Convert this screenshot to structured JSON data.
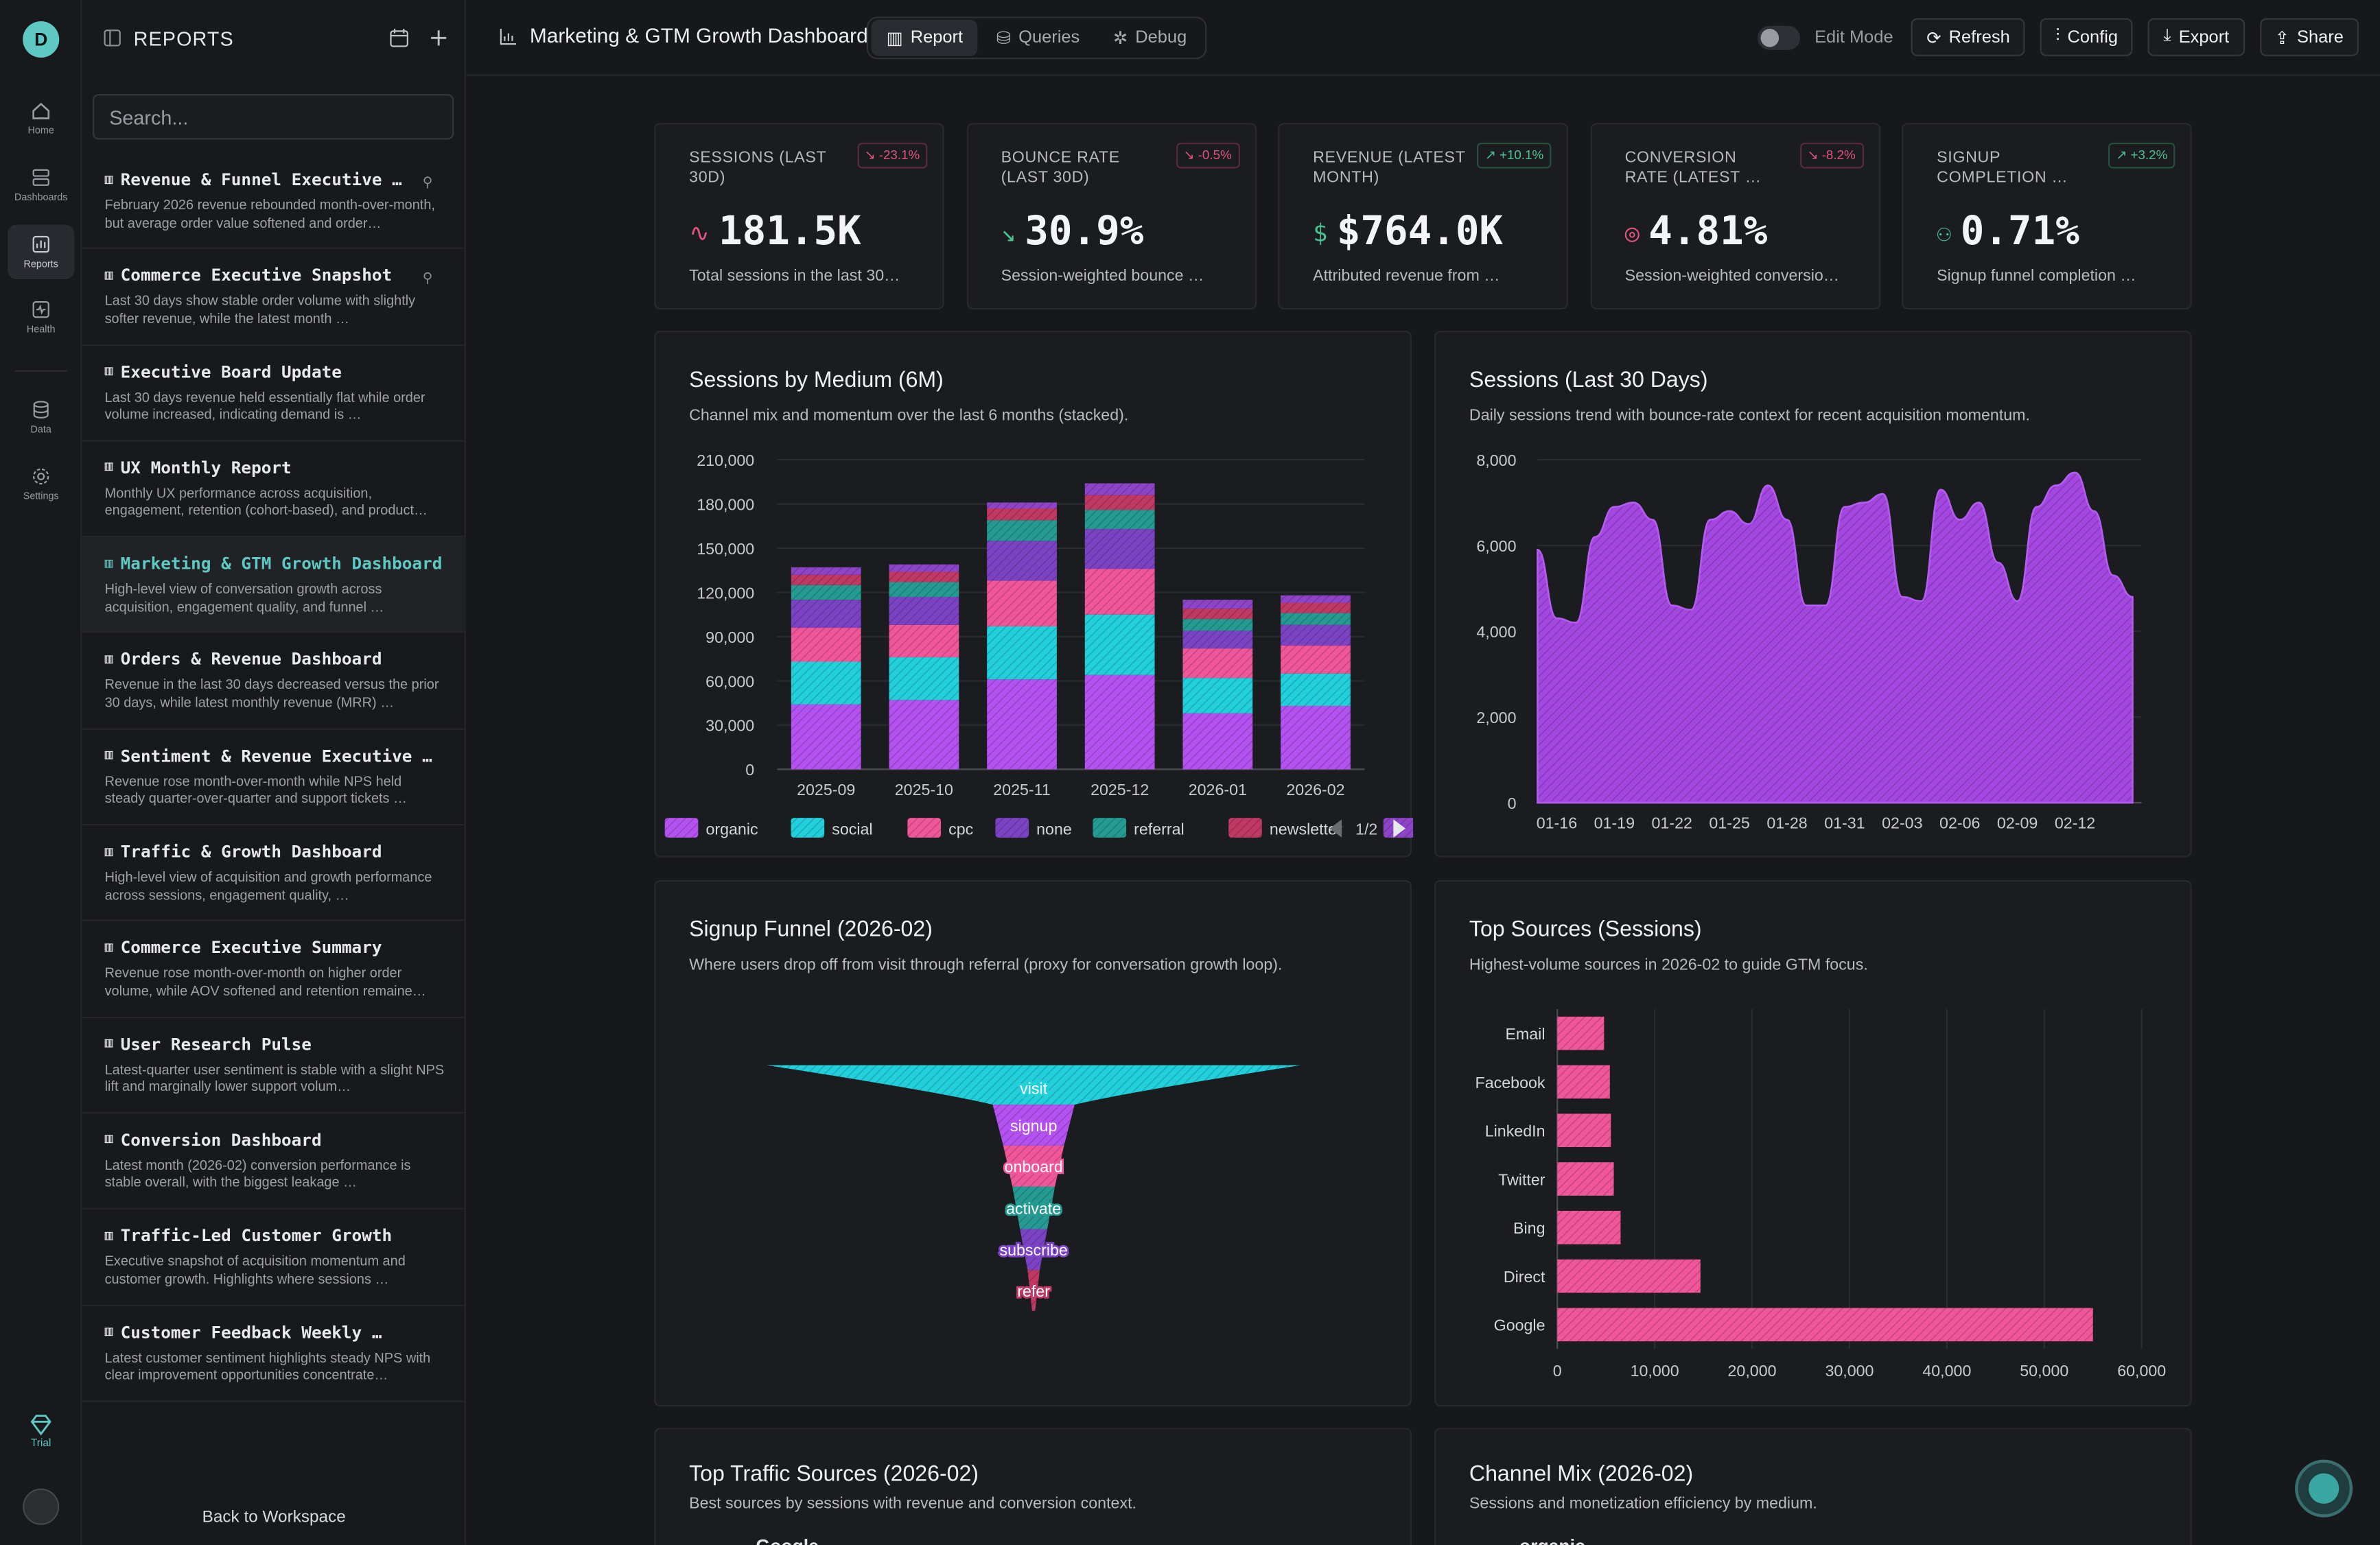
{
  "rail": {
    "items": [
      {
        "label": "Home",
        "icon": "home-icon"
      },
      {
        "label": "Dashboards",
        "icon": "dashboards-icon"
      },
      {
        "label": "Reports",
        "icon": "reports-icon"
      },
      {
        "label": "Health",
        "icon": "health-icon"
      },
      {
        "label": "Data",
        "icon": "data-icon"
      },
      {
        "label": "Settings",
        "icon": "settings-icon"
      }
    ],
    "trial": "Trial",
    "logo": "D"
  },
  "sidebar": {
    "title": "REPORTS",
    "search_placeholder": "Search...",
    "back": "Back to Workspace",
    "items": [
      {
        "title": "Revenue & Funnel Executive …",
        "desc": "February 2026 revenue rebounded month-over-month, but average order value softened and order…",
        "pinned": true
      },
      {
        "title": "Commerce Executive Snapshot",
        "desc": "Last 30 days show stable order volume with slightly softer revenue, while the latest month …",
        "pinned": true
      },
      {
        "title": "Executive Board Update",
        "desc": "Last 30 days revenue held essentially flat while order volume increased, indicating demand is …"
      },
      {
        "title": "UX Monthly Report",
        "desc": "Monthly UX performance across acquisition, engagement, retention (cohort-based), and product…"
      },
      {
        "title": "Marketing & GTM Growth Dashboard",
        "desc": "High-level view of conversation growth across acquisition, engagement quality, and funnel …",
        "active": true
      },
      {
        "title": "Orders & Revenue Dashboard",
        "desc": "Revenue in the last 30 days decreased versus the prior 30 days, while latest monthly revenue (MRR) …"
      },
      {
        "title": "Sentiment & Revenue Executive …",
        "desc": "Revenue rose month-over-month while NPS held steady quarter-over-quarter and support tickets …"
      },
      {
        "title": "Traffic & Growth Dashboard",
        "desc": "High-level view of acquisition and growth performance across sessions, engagement quality, …"
      },
      {
        "title": "Commerce Executive Summary",
        "desc": "Revenue rose month-over-month on higher order volume, while AOV softened and retention remaine…"
      },
      {
        "title": "User Research Pulse",
        "desc": "Latest-quarter user sentiment is stable with a slight NPS lift and marginally lower support volum…"
      },
      {
        "title": "Conversion Dashboard",
        "desc": "Latest month (2026-02) conversion performance is stable overall, with the biggest leakage …"
      },
      {
        "title": "Traffic-Led Customer Growth",
        "desc": "Executive snapshot of acquisition momentum and customer growth. Highlights where sessions …"
      },
      {
        "title": "Customer Feedback Weekly …",
        "desc": "Latest customer sentiment highlights steady NPS with clear improvement opportunities concentrate…"
      }
    ]
  },
  "header": {
    "title": "Marketing & GTM Growth Dashboard",
    "tabs": [
      "Report",
      "Queries",
      "Debug"
    ],
    "edit_mode": "Edit Mode",
    "buttons": [
      "Refresh",
      "Config",
      "Export",
      "Share"
    ]
  },
  "kpis": [
    {
      "label": "SESSIONS (LAST 30D)",
      "delta": "-23.1%",
      "dir": "down",
      "value": "181.5K",
      "sub": "Total sessions in the last 30…",
      "icon": "∿",
      "icolor": "#e0547e"
    },
    {
      "label": "BOUNCE RATE (LAST 30D)",
      "delta": "-0.5%",
      "dir": "down",
      "value": "30.9%",
      "sub": "Session-weighted bounce …",
      "icon": "↘",
      "icolor": "#4ac090"
    },
    {
      "label": "REVENUE (LATEST MONTH)",
      "delta": "+10.1%",
      "dir": "up",
      "value": "$764.0K",
      "sub": "Attributed revenue from …",
      "icon": "$",
      "icolor": "#4ac090"
    },
    {
      "label": "CONVERSION RATE (LATEST …",
      "delta": "-8.2%",
      "dir": "down",
      "value": "4.81%",
      "sub": "Session-weighted conversio…",
      "icon": "◎",
      "icolor": "#e0547e"
    },
    {
      "label": "SIGNUP COMPLETION …",
      "delta": "+3.2%",
      "dir": "up",
      "value": "0.71%",
      "sub": "Signup funnel completion …",
      "icon": "⚇",
      "icolor": "#4ac090"
    }
  ],
  "cards": {
    "medium": {
      "title": "Sessions by Medium (6M)",
      "subtitle": "Channel mix and momentum over the last 6 months (stacked).",
      "pager": "1/2"
    },
    "sessions30": {
      "title": "Sessions (Last 30 Days)",
      "subtitle": "Daily sessions trend with bounce-rate context for recent acquisition momentum."
    },
    "funnel": {
      "title": "Signup Funnel (2026-02)",
      "subtitle": "Where users drop off from visit through referral (proxy for conversation growth loop)."
    },
    "sources": {
      "title": "Top Sources (Sessions)",
      "subtitle": "Highest-volume sources in 2026-02 to guide GTM focus."
    },
    "traffic": {
      "title": "Top Traffic Sources (2026-02)",
      "subtitle": "Best sources by sessions with revenue and conversion context.",
      "first_row": "Google"
    },
    "channel": {
      "title": "Channel Mix (2026-02)",
      "subtitle": "Sessions and monetization efficiency by medium.",
      "first_row": "organic"
    }
  },
  "chart_data": [
    {
      "type": "bar",
      "stacked": true,
      "title": "Sessions by Medium (6M)",
      "categories": [
        "2025-09",
        "2025-10",
        "2025-11",
        "2025-12",
        "2026-01",
        "2026-02"
      ],
      "ylim": [
        0,
        210000
      ],
      "yticks": [
        0,
        30000,
        60000,
        90000,
        120000,
        150000,
        180000,
        210000
      ],
      "series": [
        {
          "name": "organic",
          "color": "#b352f0",
          "values": [
            44000,
            47000,
            61000,
            64000,
            38000,
            43000
          ]
        },
        {
          "name": "social",
          "color": "#22d0dc",
          "values": [
            29000,
            29000,
            36000,
            41000,
            24000,
            22000
          ]
        },
        {
          "name": "cpc",
          "color": "#f0569a",
          "values": [
            23000,
            22000,
            31000,
            31000,
            20000,
            19000
          ]
        },
        {
          "name": "none",
          "color": "#7c42c4",
          "values": [
            19000,
            19000,
            27000,
            27000,
            12000,
            14000
          ]
        },
        {
          "name": "referral",
          "color": "#249a92",
          "values": [
            10000,
            10000,
            14000,
            13000,
            8000,
            8000
          ]
        },
        {
          "name": "newsletter",
          "color": "#c03864",
          "values": [
            7000,
            7000,
            8000,
            10000,
            7000,
            7000
          ]
        },
        {
          "name": "",
          "color": "#8e44c8",
          "values": [
            5000,
            5000,
            4000,
            8000,
            6000,
            5000
          ]
        }
      ]
    },
    {
      "type": "area",
      "title": "Sessions (Last 30 Days)",
      "ylim": [
        0,
        8000
      ],
      "yticks": [
        0,
        2000,
        4000,
        6000,
        8000
      ],
      "x_ticks": [
        "01-16",
        "01-19",
        "01-22",
        "01-25",
        "01-28",
        "01-31",
        "02-03",
        "02-06",
        "02-09",
        "02-12"
      ],
      "x": [
        "01-15",
        "01-16",
        "01-17",
        "01-18",
        "01-19",
        "01-20",
        "01-21",
        "01-22",
        "01-23",
        "01-24",
        "01-25",
        "01-26",
        "01-27",
        "01-28",
        "01-29",
        "01-30",
        "01-31",
        "02-01",
        "02-02",
        "02-03",
        "02-04",
        "02-05",
        "02-06",
        "02-07",
        "02-08",
        "02-09",
        "02-10",
        "02-11",
        "02-12",
        "02-13",
        "02-14",
        "02-15"
      ],
      "values": [
        5900,
        4300,
        4200,
        6200,
        6900,
        7000,
        6600,
        4600,
        4500,
        6600,
        6800,
        6500,
        7400,
        6600,
        4600,
        4600,
        6900,
        7000,
        7200,
        4800,
        4700,
        7300,
        6600,
        7000,
        5600,
        4700,
        6900,
        7400,
        7700,
        6800,
        5300,
        4800
      ],
      "color": "#a347e0"
    },
    {
      "type": "funnel",
      "title": "Signup Funnel (2026-02)",
      "stages": [
        {
          "name": "visit",
          "color": "#22d0dc"
        },
        {
          "name": "signup",
          "color": "#b352f0"
        },
        {
          "name": "onboard",
          "color": "#f0569a"
        },
        {
          "name": "activate",
          "color": "#249a92"
        },
        {
          "name": "subscribe",
          "color": "#7c42c4"
        },
        {
          "name": "refer",
          "color": "#c03864"
        }
      ]
    },
    {
      "type": "bar",
      "orientation": "horizontal",
      "title": "Top Sources (Sessions)",
      "categories": [
        "Email",
        "Facebook",
        "LinkedIn",
        "Twitter",
        "Bing",
        "Direct",
        "Google"
      ],
      "values": [
        4800,
        5400,
        5500,
        5800,
        6500,
        14700,
        55000
      ],
      "xlim": [
        0,
        60000
      ],
      "xticks": [
        0,
        10000,
        20000,
        30000,
        40000,
        50000,
        60000
      ],
      "color": "#f0569a"
    }
  ]
}
